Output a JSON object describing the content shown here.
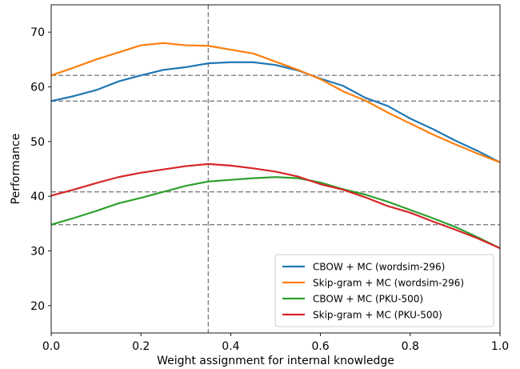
{
  "chart_data": {
    "type": "line",
    "xlabel": "Weight assignment for internal knowledge",
    "ylabel": "Performance",
    "xlim": [
      0.0,
      1.0
    ],
    "ylim": [
      15,
      75
    ],
    "xticks": [
      "0.0",
      "0.2",
      "0.4",
      "0.6",
      "0.8",
      "1.0"
    ],
    "yticks": [
      "20",
      "30",
      "40",
      "50",
      "60",
      "70"
    ],
    "grid": false,
    "legend_position": "lower-right",
    "reference_lines": {
      "vertical_x": [
        0.35
      ],
      "horizontal_y": [
        62.1,
        57.4,
        40.8,
        34.8
      ],
      "color": "#808080",
      "style": "dashed"
    },
    "x": [
      0.0,
      0.05,
      0.1,
      0.15,
      0.2,
      0.25,
      0.3,
      0.35,
      0.4,
      0.45,
      0.5,
      0.55,
      0.6,
      0.65,
      0.7,
      0.75,
      0.8,
      0.85,
      0.9,
      0.95,
      1.0
    ],
    "series": [
      {
        "name": "CBOW + MC (wordsim-296)",
        "color": "#1f77b4",
        "values": [
          57.4,
          58.3,
          59.4,
          61.0,
          62.1,
          63.1,
          63.6,
          64.3,
          64.5,
          64.5,
          64.0,
          63.0,
          61.5,
          60.2,
          58.0,
          56.5,
          54.2,
          52.3,
          50.2,
          48.3,
          46.2
        ]
      },
      {
        "name": "Skip-gram + MC (wordsim-296)",
        "color": "#ff7f0e",
        "values": [
          62.1,
          63.5,
          65.0,
          66.3,
          67.6,
          68.0,
          67.6,
          67.5,
          66.8,
          66.1,
          64.6,
          63.1,
          61.4,
          59.2,
          57.5,
          55.3,
          53.3,
          51.3,
          49.5,
          47.8,
          46.2
        ]
      },
      {
        "name": "CBOW + MC (PKU-500)",
        "color": "#2ca02c",
        "values": [
          34.8,
          36.0,
          37.3,
          38.7,
          39.7,
          40.8,
          41.9,
          42.7,
          43.0,
          43.3,
          43.5,
          43.3,
          42.5,
          41.3,
          40.3,
          39.0,
          37.5,
          36.0,
          34.4,
          32.5,
          30.5
        ]
      },
      {
        "name": "Skip-gram + MC (PKU-500)",
        "color": "#d62728",
        "values": [
          40.1,
          41.2,
          42.4,
          43.5,
          44.3,
          44.9,
          45.5,
          45.9,
          45.6,
          45.1,
          44.5,
          43.6,
          42.2,
          41.2,
          39.8,
          38.2,
          37.0,
          35.4,
          33.9,
          32.3,
          30.5
        ]
      }
    ]
  }
}
